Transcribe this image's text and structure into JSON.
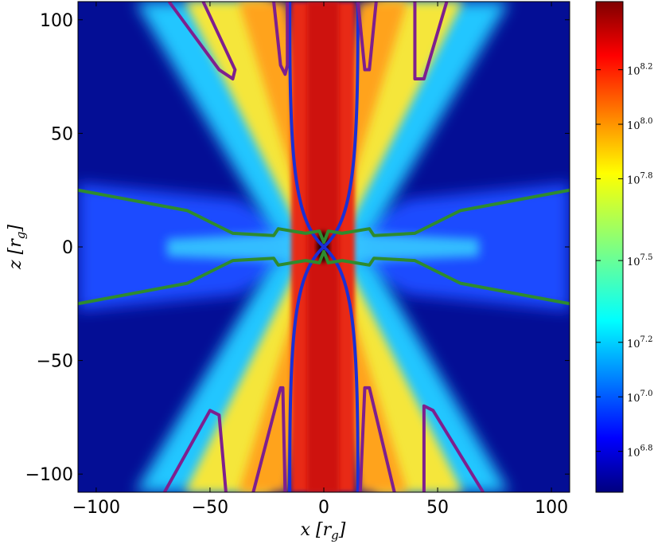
{
  "chart_data": {
    "type": "heatmap",
    "xlabel": "x [r_g]",
    "ylabel": "z [r_g]",
    "xlim": [
      -108,
      108
    ],
    "ylim": [
      -108,
      108
    ],
    "xticks": [
      -100,
      -50,
      0,
      50,
      100
    ],
    "yticks": [
      -100,
      -50,
      0,
      50,
      100
    ],
    "xtick_labels": [
      "−100",
      "−50",
      "0",
      "50",
      "100"
    ],
    "ytick_labels": [
      "−100",
      "−50",
      "0",
      "50",
      "100"
    ],
    "colormap": "jet",
    "colorbar": {
      "scale": "log",
      "range": [
        6.65,
        8.45
      ],
      "ticks": [
        6.8,
        7.0,
        7.2,
        7.5,
        7.8,
        8.0,
        8.2
      ],
      "tick_labels": [
        "10^6.8",
        "10^7.0",
        "10^7.2",
        "10^7.5",
        "10^7.8",
        "10^8.0",
        "10^8.2"
      ],
      "position": "right"
    },
    "contours": [
      {
        "color": "#1a2fd6",
        "description": "jet boundary",
        "x_outer": 15,
        "x_inner": 2,
        "z_inner": 0
      },
      {
        "color": "#2e8b2e",
        "points": [
          [
            -108,
            25
          ],
          [
            -60,
            16
          ],
          [
            -40,
            6
          ],
          [
            -22,
            5
          ],
          [
            -20,
            8
          ],
          [
            -8,
            6
          ],
          [
            -2,
            7
          ],
          [
            0,
            2
          ],
          [
            2,
            7
          ],
          [
            8,
            6
          ],
          [
            20,
            8
          ],
          [
            22,
            5
          ],
          [
            40,
            6
          ],
          [
            60,
            16
          ],
          [
            108,
            25
          ]
        ]
      },
      {
        "color": "#7e1f8e",
        "description": "upper-left",
        "points": [
          [
            -68,
            108
          ],
          [
            -46,
            78
          ],
          [
            -40,
            74
          ],
          [
            -39,
            78
          ],
          [
            -53,
            108
          ]
        ]
      },
      {
        "color": "#7e1f8e",
        "points": [
          [
            -22,
            108
          ],
          [
            -19,
            80
          ],
          [
            -17,
            76
          ],
          [
            -16,
            80
          ],
          [
            -16,
            108
          ]
        ]
      },
      {
        "color": "#7e1f8e",
        "points": [
          [
            15,
            108
          ],
          [
            18,
            78
          ],
          [
            20,
            78
          ],
          [
            23,
            108
          ]
        ]
      },
      {
        "color": "#7e1f8e",
        "points": [
          [
            40,
            108
          ],
          [
            40,
            74
          ],
          [
            44,
            74
          ],
          [
            54,
            108
          ]
        ]
      },
      {
        "color": "#7e1f8e",
        "points": [
          [
            -70,
            -108
          ],
          [
            -50,
            -72
          ],
          [
            -46,
            -74
          ],
          [
            -43,
            -108
          ]
        ]
      },
      {
        "color": "#7e1f8e",
        "points": [
          [
            -31,
            -108
          ],
          [
            -19,
            -62
          ],
          [
            -18,
            -62
          ],
          [
            -17,
            -108
          ]
        ]
      },
      {
        "color": "#7e1f8e",
        "points": [
          [
            16,
            -108
          ],
          [
            18,
            -62
          ],
          [
            20,
            -62
          ],
          [
            31,
            -108
          ]
        ]
      },
      {
        "color": "#7e1f8e",
        "points": [
          [
            44,
            -108
          ],
          [
            44,
            -70
          ],
          [
            48,
            -72
          ],
          [
            70,
            -108
          ]
        ]
      }
    ]
  }
}
